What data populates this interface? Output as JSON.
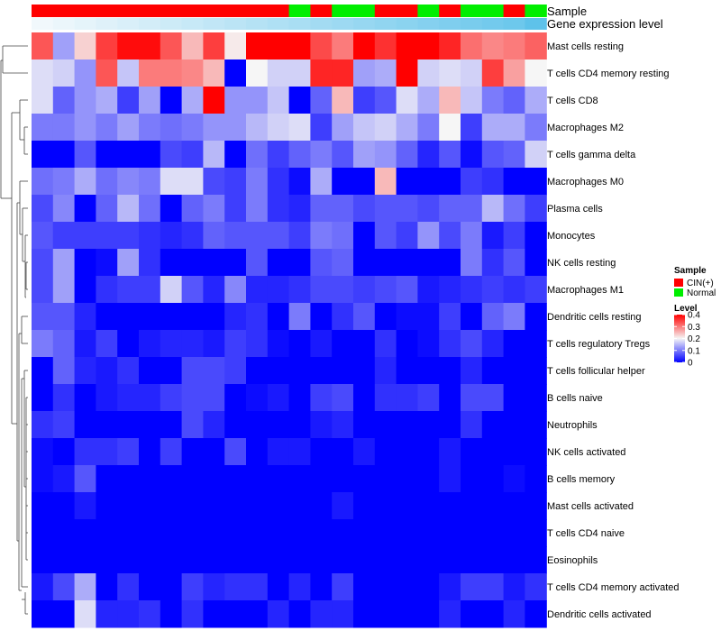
{
  "chart_data": {
    "type": "heatmap",
    "annotation_tracks": {
      "sample_label": "Sample",
      "gene_label": "Gene expression level"
    },
    "samples": [
      "CIN(+)",
      "CIN(+)",
      "CIN(+)",
      "CIN(+)",
      "CIN(+)",
      "CIN(+)",
      "CIN(+)",
      "CIN(+)",
      "CIN(+)",
      "CIN(+)",
      "CIN(+)",
      "CIN(+)",
      "Normal",
      "CIN(+)",
      "Normal",
      "Normal",
      "CIN(+)",
      "CIN(+)",
      "Normal",
      "CIN(+)",
      "Normal",
      "Normal",
      "CIN(+)",
      "Normal"
    ],
    "gene_expression_level": [
      0.02,
      0.06,
      0.1,
      0.14,
      0.18,
      0.22,
      0.26,
      0.3,
      0.34,
      0.38,
      0.42,
      0.46,
      0.5,
      0.54,
      0.58,
      0.62,
      0.66,
      0.7,
      0.74,
      0.78,
      0.82,
      0.86,
      0.9,
      1.0
    ],
    "rows": [
      "Mast cells resting",
      "T cells CD4 memory resting",
      "T cells CD8",
      "Macrophages M2",
      "T cells gamma delta",
      "Macrophages M0",
      "Plasma cells",
      "Monocytes",
      "NK cells resting",
      "Macrophages M1",
      "Dendritic cells resting",
      "T cells regulatory  Tregs",
      "T cells follicular helper",
      "B cells naive",
      "Neutrophils",
      "NK cells activated",
      "B cells memory",
      "Mast cells activated",
      "T cells CD4 naive",
      "Eosinophils",
      "T cells CD4 memory activated",
      "Dendritic cells activated"
    ],
    "values": [
      [
        0.33,
        0.13,
        0.23,
        0.35,
        0.39,
        0.39,
        0.33,
        0.25,
        0.35,
        0.21,
        0.4,
        0.4,
        0.4,
        0.34,
        0.3,
        0.4,
        0.36,
        0.4,
        0.4,
        0.37,
        0.31,
        0.29,
        0.3,
        0.32
      ],
      [
        0.18,
        0.17,
        0.12,
        0.33,
        0.16,
        0.3,
        0.3,
        0.29,
        0.25,
        0.0,
        0.2,
        0.17,
        0.17,
        0.37,
        0.37,
        0.13,
        0.14,
        0.4,
        0.17,
        0.18,
        0.17,
        0.35,
        0.27,
        0.2
      ],
      [
        0.18,
        0.08,
        0.12,
        0.14,
        0.05,
        0.13,
        0.0,
        0.14,
        0.4,
        0.12,
        0.12,
        0.16,
        0.0,
        0.08,
        0.25,
        0.05,
        0.07,
        0.18,
        0.14,
        0.25,
        0.16,
        0.1,
        0.08,
        0.14
      ],
      [
        0.1,
        0.1,
        0.12,
        0.1,
        0.13,
        0.1,
        0.09,
        0.1,
        0.12,
        0.12,
        0.15,
        0.17,
        0.18,
        0.05,
        0.13,
        0.16,
        0.17,
        0.14,
        0.1,
        0.2,
        0.05,
        0.14,
        0.14,
        0.1
      ],
      [
        0.0,
        0.0,
        0.07,
        0.0,
        0.0,
        0.0,
        0.06,
        0.05,
        0.15,
        0.0,
        0.09,
        0.05,
        0.08,
        0.1,
        0.07,
        0.13,
        0.12,
        0.08,
        0.03,
        0.07,
        0.01,
        0.07,
        0.08,
        0.17
      ],
      [
        0.09,
        0.1,
        0.14,
        0.09,
        0.11,
        0.1,
        0.18,
        0.18,
        0.06,
        0.05,
        0.1,
        0.04,
        0.01,
        0.14,
        0.0,
        0.0,
        0.25,
        0.0,
        0.0,
        0.0,
        0.05,
        0.04,
        0.0,
        0.0
      ],
      [
        0.06,
        0.11,
        0.0,
        0.08,
        0.15,
        0.09,
        0.0,
        0.08,
        0.1,
        0.05,
        0.1,
        0.04,
        0.03,
        0.08,
        0.08,
        0.06,
        0.07,
        0.07,
        0.06,
        0.08,
        0.08,
        0.15,
        0.09,
        0.05
      ],
      [
        0.07,
        0.05,
        0.05,
        0.05,
        0.05,
        0.04,
        0.03,
        0.04,
        0.08,
        0.07,
        0.07,
        0.07,
        0.05,
        0.1,
        0.09,
        0.0,
        0.07,
        0.05,
        0.12,
        0.06,
        0.1,
        0.02,
        0.05,
        0.0
      ],
      [
        0.06,
        0.13,
        0.0,
        0.01,
        0.13,
        0.04,
        0.0,
        0.0,
        0.0,
        0.0,
        0.07,
        0.0,
        0.0,
        0.07,
        0.08,
        0.0,
        0.0,
        0.0,
        0.0,
        0.0,
        0.1,
        0.04,
        0.07,
        0.0
      ],
      [
        0.06,
        0.13,
        0.0,
        0.04,
        0.05,
        0.05,
        0.17,
        0.07,
        0.03,
        0.11,
        0.03,
        0.03,
        0.04,
        0.06,
        0.06,
        0.05,
        0.06,
        0.07,
        0.02,
        0.03,
        0.04,
        0.05,
        0.04,
        0.05
      ],
      [
        0.07,
        0.07,
        0.03,
        0.0,
        0.0,
        0.0,
        0.0,
        0.0,
        0.0,
        0.03,
        0.04,
        0.0,
        0.1,
        0.0,
        0.04,
        0.07,
        0.0,
        0.01,
        0.01,
        0.05,
        0.0,
        0.08,
        0.1,
        0.0
      ],
      [
        0.1,
        0.08,
        0.02,
        0.05,
        0.0,
        0.02,
        0.03,
        0.03,
        0.02,
        0.05,
        0.04,
        0.01,
        0.0,
        0.02,
        0.0,
        0.0,
        0.04,
        0.0,
        0.01,
        0.04,
        0.06,
        0.03,
        0.0,
        0.0
      ],
      [
        0.0,
        0.08,
        0.03,
        0.02,
        0.04,
        0.0,
        0.0,
        0.06,
        0.06,
        0.05,
        0.0,
        0.0,
        0.0,
        0.0,
        0.0,
        0.0,
        0.03,
        0.0,
        0.0,
        0.0,
        0.03,
        0.0,
        0.0,
        0.0
      ],
      [
        0.0,
        0.04,
        0.0,
        0.02,
        0.03,
        0.03,
        0.05,
        0.06,
        0.06,
        0.0,
        0.01,
        0.02,
        0.0,
        0.05,
        0.06,
        0.0,
        0.04,
        0.04,
        0.05,
        0.0,
        0.06,
        0.06,
        0.0,
        0.0
      ],
      [
        0.04,
        0.05,
        0.0,
        0.0,
        0.0,
        0.0,
        0.0,
        0.06,
        0.03,
        0.0,
        0.0,
        0.0,
        0.0,
        0.02,
        0.03,
        0.0,
        0.0,
        0.0,
        0.0,
        0.0,
        0.04,
        0.0,
        0.0,
        0.0
      ],
      [
        0.01,
        0.0,
        0.04,
        0.04,
        0.05,
        0.0,
        0.05,
        0.0,
        0.0,
        0.06,
        0.0,
        0.02,
        0.02,
        0.0,
        0.0,
        0.02,
        0.0,
        0.0,
        0.0,
        0.02,
        0.0,
        0.0,
        0.0,
        0.0
      ],
      [
        0.01,
        0.02,
        0.07,
        0.0,
        0.0,
        0.0,
        0.0,
        0.0,
        0.0,
        0.0,
        0.0,
        0.0,
        0.0,
        0.0,
        0.0,
        0.0,
        0.0,
        0.0,
        0.0,
        0.02,
        0.0,
        0.0,
        0.01,
        0.0
      ],
      [
        0.0,
        0.0,
        0.02,
        0.0,
        0.0,
        0.0,
        0.0,
        0.0,
        0.0,
        0.0,
        0.0,
        0.0,
        0.0,
        0.0,
        0.02,
        0.0,
        0.0,
        0.0,
        0.0,
        0.0,
        0.0,
        0.0,
        0.0,
        0.0
      ],
      [
        0.0,
        0.0,
        0.0,
        0.0,
        0.0,
        0.0,
        0.0,
        0.0,
        0.0,
        0.0,
        0.0,
        0.0,
        0.0,
        0.0,
        0.0,
        0.0,
        0.0,
        0.0,
        0.0,
        0.0,
        0.0,
        0.0,
        0.0,
        0.0
      ],
      [
        0.0,
        0.0,
        0.0,
        0.0,
        0.0,
        0.0,
        0.0,
        0.0,
        0.0,
        0.0,
        0.0,
        0.0,
        0.0,
        0.0,
        0.0,
        0.0,
        0.0,
        0.0,
        0.0,
        0.0,
        0.0,
        0.0,
        0.0,
        0.0
      ],
      [
        0.02,
        0.06,
        0.14,
        0.0,
        0.04,
        0.0,
        0.0,
        0.05,
        0.03,
        0.04,
        0.04,
        0.0,
        0.03,
        0.0,
        0.05,
        0.0,
        0.0,
        0.0,
        0.0,
        0.02,
        0.05,
        0.05,
        0.02,
        0.04
      ],
      [
        0.0,
        0.0,
        0.18,
        0.03,
        0.03,
        0.04,
        0.0,
        0.04,
        0.0,
        0.0,
        0.0,
        0.03,
        0.0,
        0.03,
        0.03,
        0.0,
        0.0,
        0.0,
        0.0,
        0.03,
        0.0,
        0.0,
        0.03,
        0.0
      ]
    ],
    "legend": {
      "sample_title": "Sample",
      "sample_entries": [
        {
          "label": "CIN(+)",
          "color": "#ff0000"
        },
        {
          "label": "Normal",
          "color": "#00ee00"
        }
      ],
      "level_title": "Level",
      "level_ticks": [
        "0.4",
        "0.3",
        "0.2",
        "0.1",
        "0"
      ],
      "level_range": [
        0,
        0.4
      ]
    },
    "colors": {
      "low": "#0000ff",
      "mid": "#f6f6f6",
      "high": "#ff0000",
      "sample_cin": "#ff0000",
      "sample_normal": "#00ee00",
      "gene_low": "#f4f9fc",
      "gene_high": "#5ec2ea"
    }
  }
}
